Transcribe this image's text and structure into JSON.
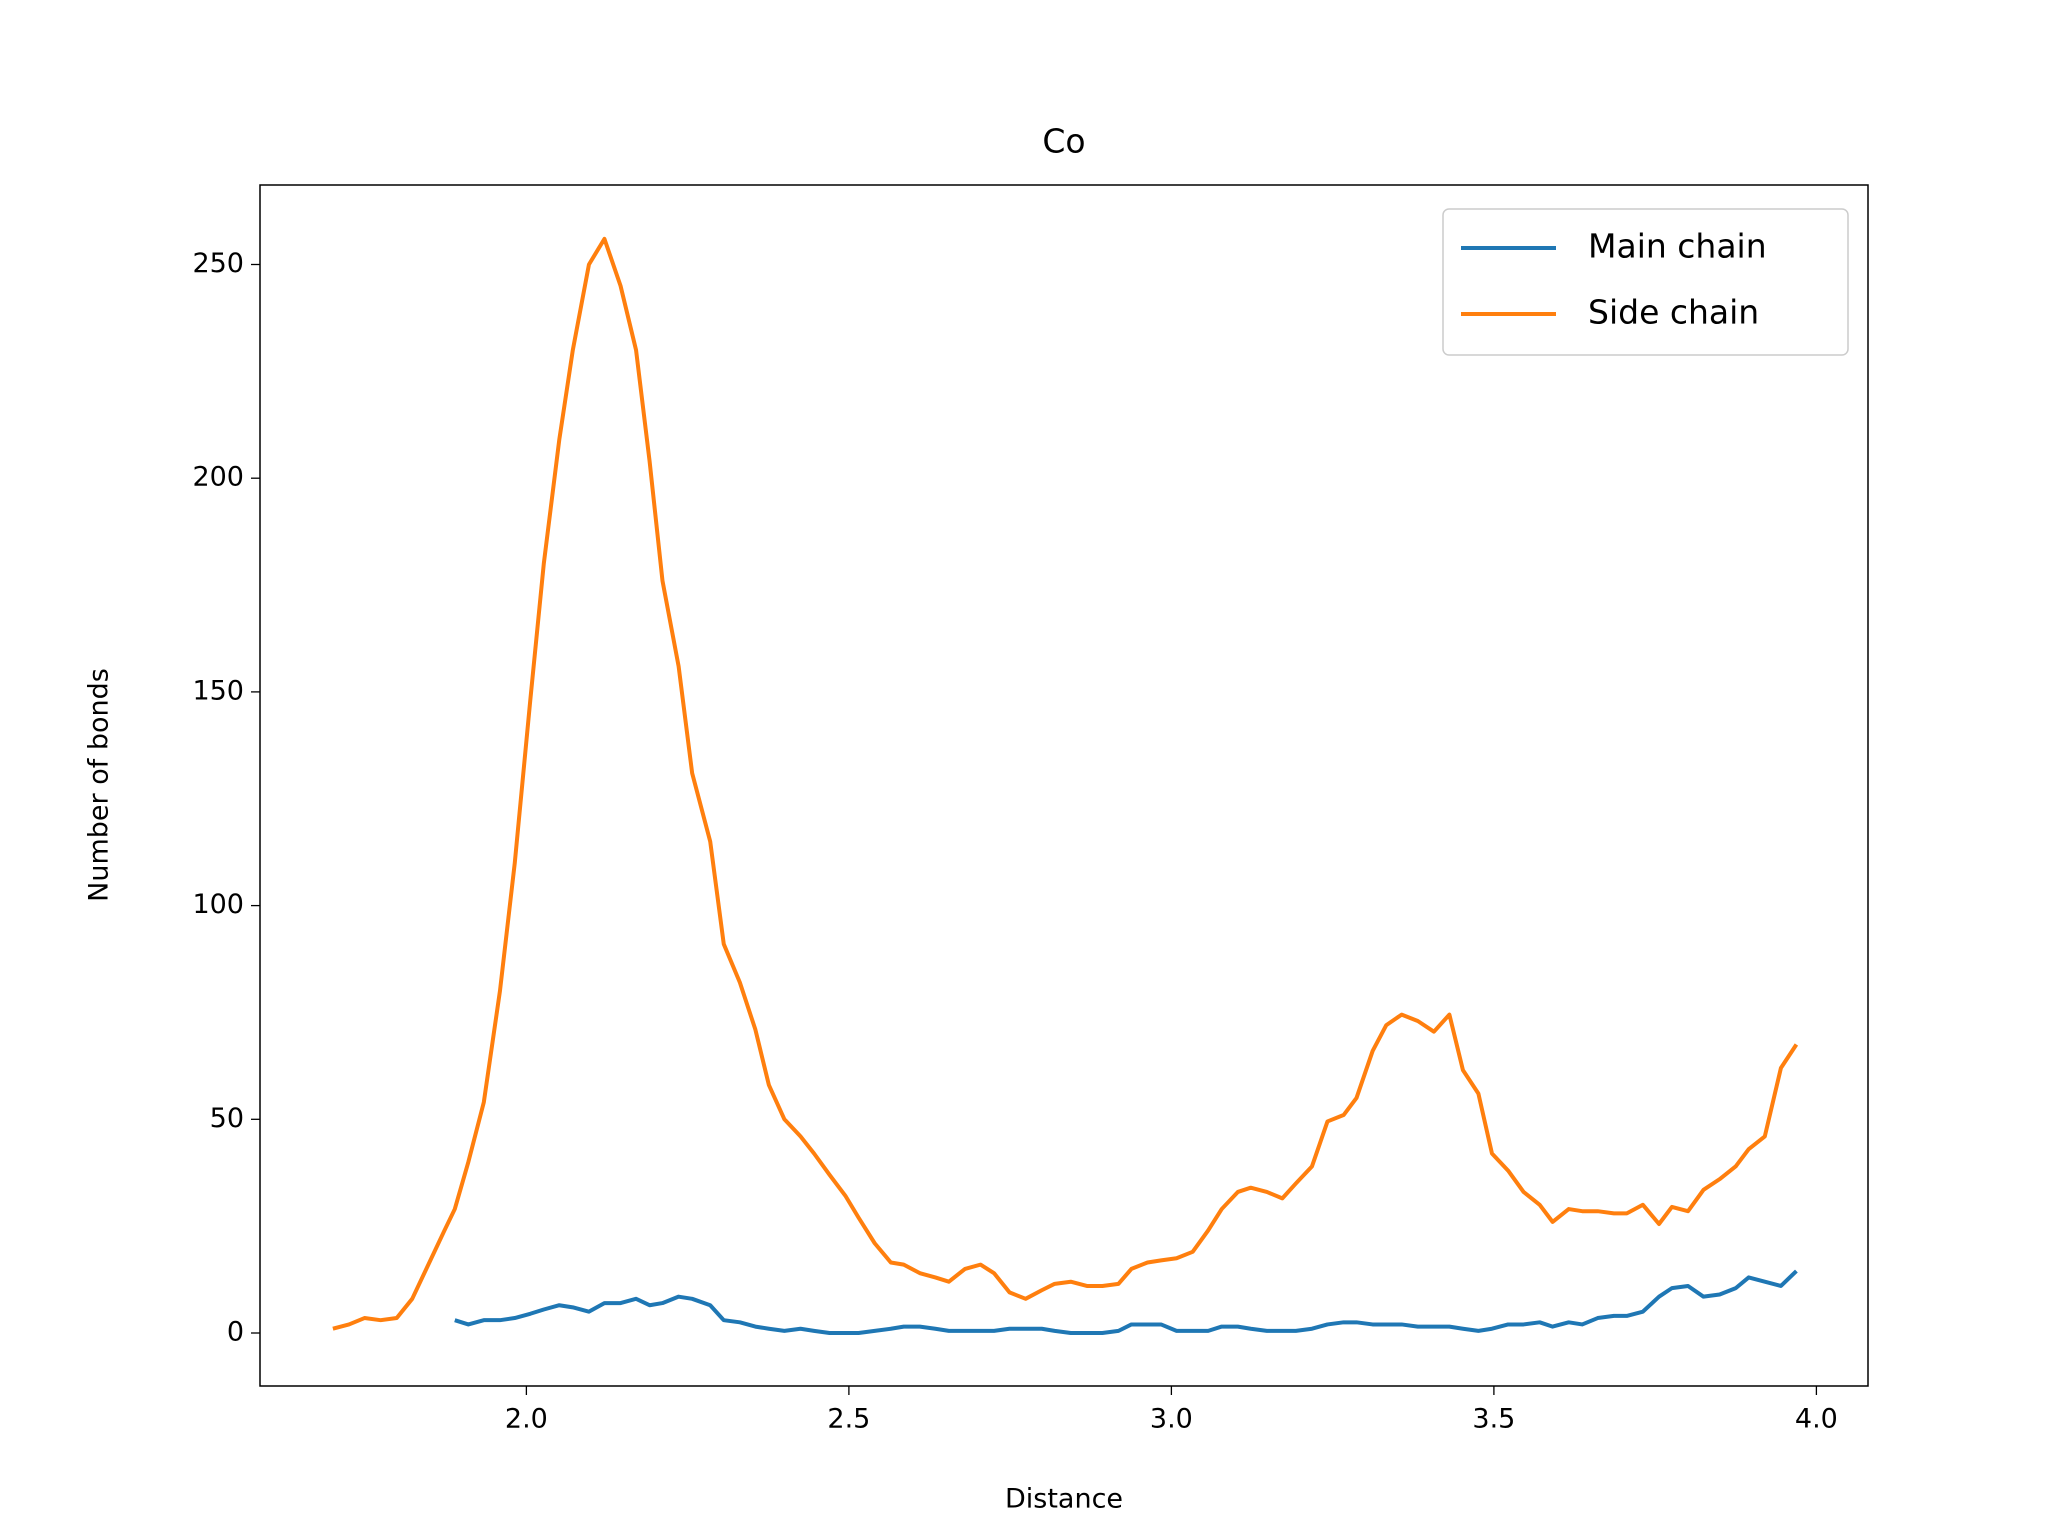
{
  "chart_data": {
    "type": "line",
    "title": "Co",
    "x_label": "Distance",
    "y_label": "Number of bonds",
    "x": [
      1.7,
      1.725,
      1.749,
      1.774,
      1.799,
      1.823,
      1.848,
      1.873,
      1.889,
      1.91,
      1.934,
      1.959,
      1.982,
      2.006,
      2.027,
      2.051,
      2.072,
      2.097,
      2.121,
      2.146,
      2.17,
      2.191,
      2.211,
      2.236,
      2.257,
      2.285,
      2.306,
      2.331,
      2.355,
      2.376,
      2.4,
      2.425,
      2.446,
      2.47,
      2.495,
      2.515,
      2.54,
      2.565,
      2.585,
      2.61,
      2.634,
      2.655,
      2.68,
      2.704,
      2.725,
      2.749,
      2.774,
      2.799,
      2.819,
      2.844,
      2.869,
      2.893,
      2.918,
      2.938,
      2.963,
      2.984,
      3.008,
      3.033,
      3.057,
      3.078,
      3.103,
      3.123,
      3.148,
      3.172,
      3.193,
      3.218,
      3.242,
      3.267,
      3.287,
      3.312,
      3.333,
      3.357,
      3.382,
      3.407,
      3.431,
      3.452,
      3.476,
      3.497,
      3.522,
      3.546,
      3.571,
      3.591,
      3.616,
      3.637,
      3.661,
      3.686,
      3.706,
      3.731,
      3.756,
      3.776,
      3.801,
      3.825,
      3.85,
      3.875,
      3.895,
      3.92,
      3.945,
      3.969
    ],
    "series": [
      {
        "name": "Main chain",
        "color": "#1f77b4",
        "values": [
          null,
          null,
          null,
          null,
          null,
          null,
          null,
          null,
          3,
          2,
          3,
          3,
          3.5,
          4.5,
          5.5,
          6.5,
          6,
          5,
          7,
          7,
          8,
          6.5,
          7,
          8.5,
          8,
          6.5,
          3,
          2.5,
          1.5,
          1,
          0.5,
          1,
          0.5,
          0,
          0,
          0,
          0.5,
          1,
          1.5,
          1.5,
          1,
          0.5,
          0.5,
          0.5,
          0.5,
          1,
          1,
          1,
          0.5,
          0,
          0,
          0,
          0.5,
          2,
          2,
          2,
          0.5,
          0.5,
          0.5,
          1.5,
          1.5,
          1,
          0.5,
          0.5,
          0.5,
          1,
          2,
          2.5,
          2.5,
          2,
          2,
          2,
          1.5,
          1.5,
          1.5,
          1,
          0.5,
          1,
          2,
          2,
          2.5,
          1.5,
          2.5,
          2,
          3.5,
          4,
          4,
          5,
          8.5,
          10.5,
          11,
          8.5,
          9,
          10.5,
          13,
          12,
          11,
          14.5
        ]
      },
      {
        "name": "Side chain",
        "color": "#ff7f0e",
        "values": [
          1,
          2,
          3.5,
          3,
          3.5,
          8,
          16,
          24,
          29,
          40,
          54,
          80,
          110,
          148,
          180,
          209,
          230,
          250,
          256,
          245,
          230,
          204,
          176,
          156,
          131,
          115,
          91,
          82,
          71,
          58,
          50,
          46,
          42,
          37,
          32,
          27,
          21,
          16.5,
          16,
          14,
          13,
          12,
          15,
          16,
          14,
          9.5,
          8,
          10,
          11.5,
          12,
          11,
          11,
          11.5,
          15,
          16.5,
          17,
          17.5,
          19,
          24,
          29,
          33,
          34,
          33,
          31.5,
          35,
          39,
          49.5,
          51,
          55,
          66,
          72,
          74.5,
          73,
          70.5,
          74.5,
          61.5,
          56,
          42,
          38,
          33,
          30,
          26,
          29,
          28.5,
          28.5,
          28,
          28,
          30,
          25.5,
          29.5,
          28.5,
          33.5,
          36,
          39,
          43,
          46,
          62,
          67.5
        ]
      }
    ],
    "xlim": [
      1.587,
      4.08
    ],
    "ylim": [
      -12.4,
      268.6
    ],
    "xticks": [
      {
        "value": 2,
        "label": "2.0"
      },
      {
        "value": 2.5,
        "label": "2.5"
      },
      {
        "value": 3,
        "label": "3.0"
      },
      {
        "value": 3.5,
        "label": "3.5"
      },
      {
        "value": 4,
        "label": "4.0"
      }
    ],
    "yticks": [
      0,
      50,
      100,
      150,
      200,
      250
    ],
    "legend": "upper right",
    "grid": false
  }
}
